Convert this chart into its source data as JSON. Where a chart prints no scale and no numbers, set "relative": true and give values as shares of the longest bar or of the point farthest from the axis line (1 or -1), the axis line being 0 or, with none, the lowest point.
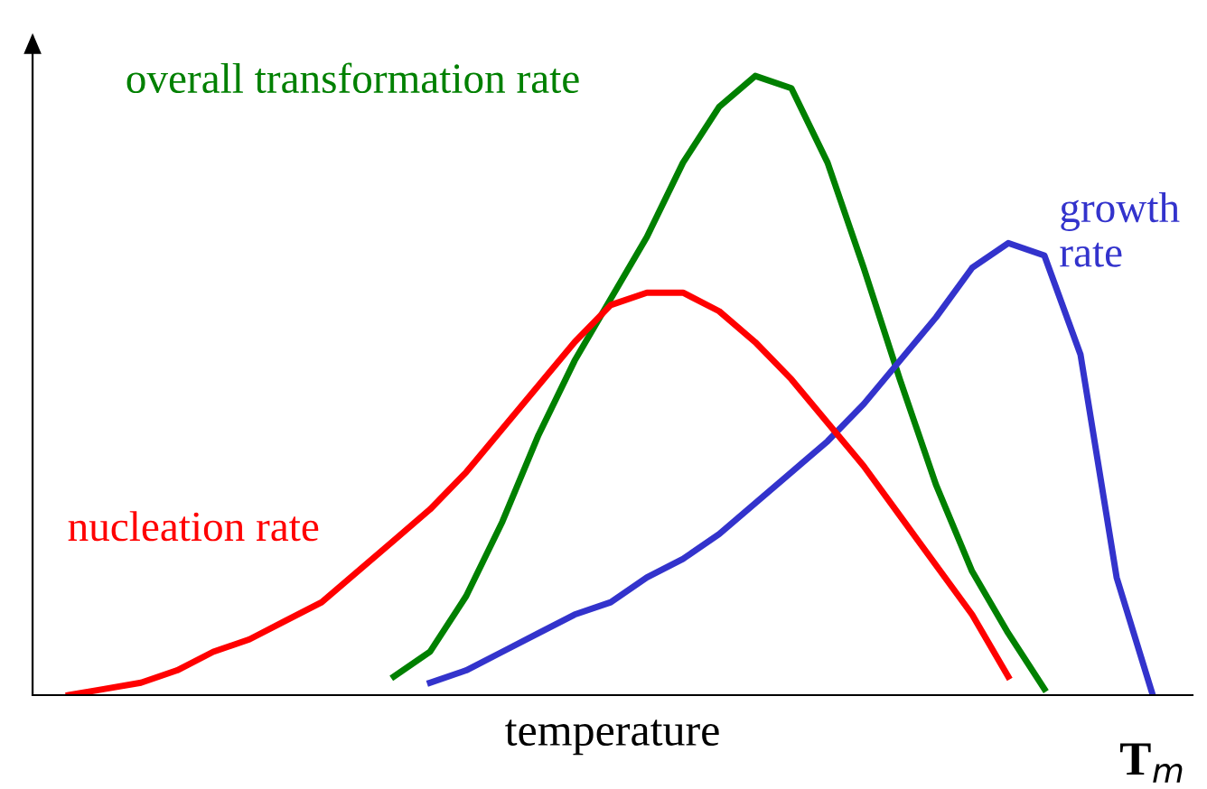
{
  "chart_data": {
    "type": "line",
    "relative": true,
    "xlabel": "temperature",
    "annotations": [
      "T$_{m}$"
    ],
    "categories": [
      null,
      null,
      null,
      null,
      null,
      null,
      null,
      null,
      null,
      null,
      null,
      null,
      null,
      null,
      null,
      null,
      null,
      null,
      null,
      null,
      null,
      null,
      null,
      null,
      null,
      null,
      null,
      null,
      null,
      null,
      null,
      null,
      null
    ],
    "series": [
      {
        "name": "overall transformation rate",
        "color": "#008000",
        "values": [
          null,
          null,
          null,
          null,
          null,
          null,
          null,
          null,
          null,
          null,
          0.03,
          0.07,
          0.16,
          0.28,
          0.42,
          0.54,
          0.64,
          0.74,
          0.86,
          0.95,
          1.0,
          0.98,
          0.86,
          0.69,
          0.51,
          0.34,
          0.2,
          0.1,
          0.01,
          null,
          null,
          null,
          null
        ]
      },
      {
        "name": "growth\nrate",
        "color": "#3333cc",
        "values": [
          null,
          null,
          null,
          null,
          null,
          null,
          null,
          null,
          null,
          null,
          null,
          0.02,
          0.04,
          0.07,
          0.1,
          0.13,
          0.15,
          0.19,
          0.22,
          0.26,
          0.31,
          0.36,
          0.41,
          0.47,
          0.54,
          0.61,
          0.69,
          0.73,
          0.71,
          0.55,
          0.19,
          0.0,
          null
        ]
      },
      {
        "name": "nucleation rate",
        "color": "#ff0000",
        "values": [
          null,
          0.0,
          0.01,
          0.02,
          0.04,
          0.07,
          0.09,
          0.12,
          0.15,
          0.2,
          0.25,
          0.3,
          0.36,
          0.43,
          0.5,
          0.57,
          0.63,
          0.65,
          0.65,
          0.62,
          0.57,
          0.51,
          0.44,
          0.37,
          0.29,
          0.21,
          0.13,
          0.03,
          null,
          null,
          null,
          null,
          null
        ]
      }
    ],
    "grid": false,
    "legend": false,
    "marker": "none",
    "line_style": "solid"
  }
}
